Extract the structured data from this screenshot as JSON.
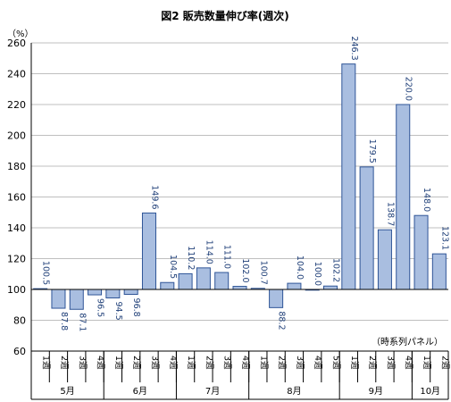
{
  "chart_data": {
    "type": "bar",
    "title": "図2  販売数量伸び率(週次)",
    "y_unit": "（%）",
    "note": "（時系列パネル）",
    "ylim": [
      60,
      260
    ],
    "yticks": [
      60,
      80,
      100,
      120,
      140,
      160,
      180,
      200,
      220,
      240,
      260
    ],
    "grid": true,
    "baseline": 100,
    "bar_color": "#a9bee0",
    "bar_edge": "#2f5597",
    "label_color": "#1f3f78",
    "categories": [
      "1週",
      "2週",
      "3週",
      "4週",
      "1週",
      "2週",
      "3週",
      "4週",
      "1週",
      "2週",
      "3週",
      "4週",
      "1週",
      "2週",
      "3週",
      "4週",
      "5週",
      "1週",
      "2週",
      "3週",
      "4週",
      "1週",
      "2週"
    ],
    "values": [
      100.5,
      87.8,
      87.1,
      96.5,
      94.5,
      96.8,
      149.6,
      104.5,
      110.2,
      114.0,
      111.0,
      102.0,
      100.7,
      88.2,
      104.0,
      100.0,
      102.2,
      246.3,
      179.5,
      138.7,
      220.0,
      148.0,
      123.1
    ],
    "value_labels": [
      "100.5",
      "87.8",
      "87.1",
      "96.5",
      "94.5",
      "96.8",
      "149.6",
      "104.5",
      "110.2",
      "114.0",
      "111.0",
      "102.0",
      "100.7",
      "88.2",
      "104.0",
      "100.0",
      "102.2",
      "246.3",
      "179.5",
      "138.7",
      "220.0",
      "148.0",
      "123.1"
    ],
    "groups": [
      {
        "label": "5月",
        "count": 4
      },
      {
        "label": "6月",
        "count": 4
      },
      {
        "label": "7月",
        "count": 4
      },
      {
        "label": "8月",
        "count": 5
      },
      {
        "label": "9月",
        "count": 4
      },
      {
        "label": "10月",
        "count": 2
      }
    ]
  }
}
